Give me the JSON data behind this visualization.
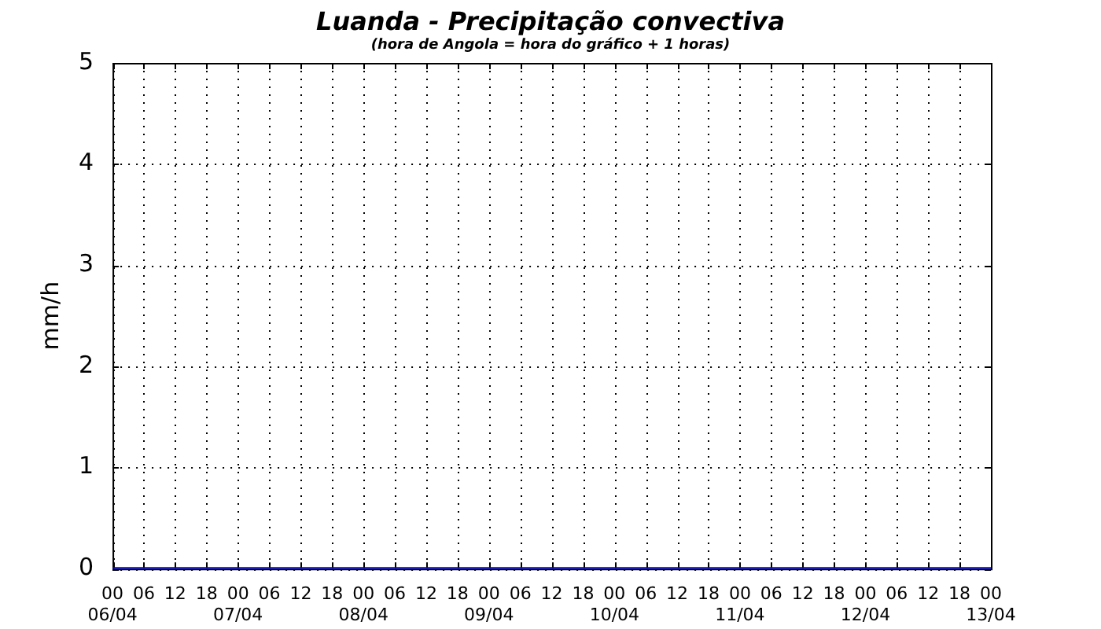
{
  "chart_data": {
    "type": "line",
    "title": "Luanda - Precipitação convectiva",
    "subtitle": "(hora de Angola = hora do gráfico + 1 horas)",
    "ylabel": "mm/h",
    "x": [
      "--04-06T00:00",
      "--04-06T06:00",
      "--04-06T12:00",
      "--04-06T18:00",
      "--04-07T00:00",
      "--04-07T06:00",
      "--04-07T12:00",
      "--04-07T18:00",
      "--04-08T00:00",
      "--04-08T06:00",
      "--04-08T12:00",
      "--04-08T18:00",
      "--04-09T00:00",
      "--04-09T06:00",
      "--04-09T12:00",
      "--04-09T18:00",
      "--04-10T00:00",
      "--04-10T06:00",
      "--04-10T12:00",
      "--04-10T18:00",
      "--04-11T00:00",
      "--04-11T06:00",
      "--04-11T12:00",
      "--04-11T18:00",
      "--04-12T00:00",
      "--04-12T06:00",
      "--04-12T12:00",
      "--04-12T18:00",
      "--04-13T00:00"
    ],
    "series": [
      {
        "color": "#0000ff",
        "values": [
          0,
          0,
          0,
          0,
          0,
          0,
          0,
          0,
          0,
          0,
          0,
          0,
          0,
          0,
          0,
          0,
          0,
          0,
          0,
          0,
          0,
          0,
          0,
          0,
          0,
          0,
          0,
          0,
          0
        ]
      }
    ],
    "xlim": [
      "--04-06T00:00",
      "--04-13T00:00"
    ],
    "xticks": [
      {
        "value": "--04-06T00:00",
        "label": "00\n06/04"
      },
      {
        "value": "--04-06T06:00",
        "label": "06"
      },
      {
        "value": "--04-06T12:00",
        "label": "12"
      },
      {
        "value": "--04-06T18:00",
        "label": "18"
      },
      {
        "value": "--04-07T00:00",
        "label": "00\n07/04"
      },
      {
        "value": "--04-07T06:00",
        "label": "06"
      },
      {
        "value": "--04-07T12:00",
        "label": "12"
      },
      {
        "value": "--04-07T18:00",
        "label": "18"
      },
      {
        "value": "--04-08T00:00",
        "label": "00\n08/04"
      },
      {
        "value": "--04-08T06:00",
        "label": "06"
      },
      {
        "value": "--04-08T12:00",
        "label": "12"
      },
      {
        "value": "--04-08T18:00",
        "label": "18"
      },
      {
        "value": "--04-09T00:00",
        "label": "00\n09/04"
      },
      {
        "value": "--04-09T06:00",
        "label": "06"
      },
      {
        "value": "--04-09T12:00",
        "label": "12"
      },
      {
        "value": "--04-09T18:00",
        "label": "18"
      },
      {
        "value": "--04-10T00:00",
        "label": "00\n10/04"
      },
      {
        "value": "--04-10T06:00",
        "label": "06"
      },
      {
        "value": "--04-10T12:00",
        "label": "12"
      },
      {
        "value": "--04-10T18:00",
        "label": "18"
      },
      {
        "value": "--04-11T00:00",
        "label": "00\n11/04"
      },
      {
        "value": "--04-11T06:00",
        "label": "06"
      },
      {
        "value": "--04-11T12:00",
        "label": "12"
      },
      {
        "value": "--04-11T18:00",
        "label": "18"
      },
      {
        "value": "--04-12T00:00",
        "label": "00\n12/04"
      },
      {
        "value": "--04-12T06:00",
        "label": "06"
      },
      {
        "value": "--04-12T12:00",
        "label": "12"
      },
      {
        "value": "--04-12T18:00",
        "label": "18"
      },
      {
        "value": "--04-13T00:00",
        "label": "00\n13/04"
      }
    ],
    "ylim": [
      0,
      5
    ],
    "yticks": [
      0,
      1,
      2,
      3,
      4,
      5
    ],
    "grid": true,
    "legend": false,
    "marker": "none",
    "line_style": "solid"
  }
}
